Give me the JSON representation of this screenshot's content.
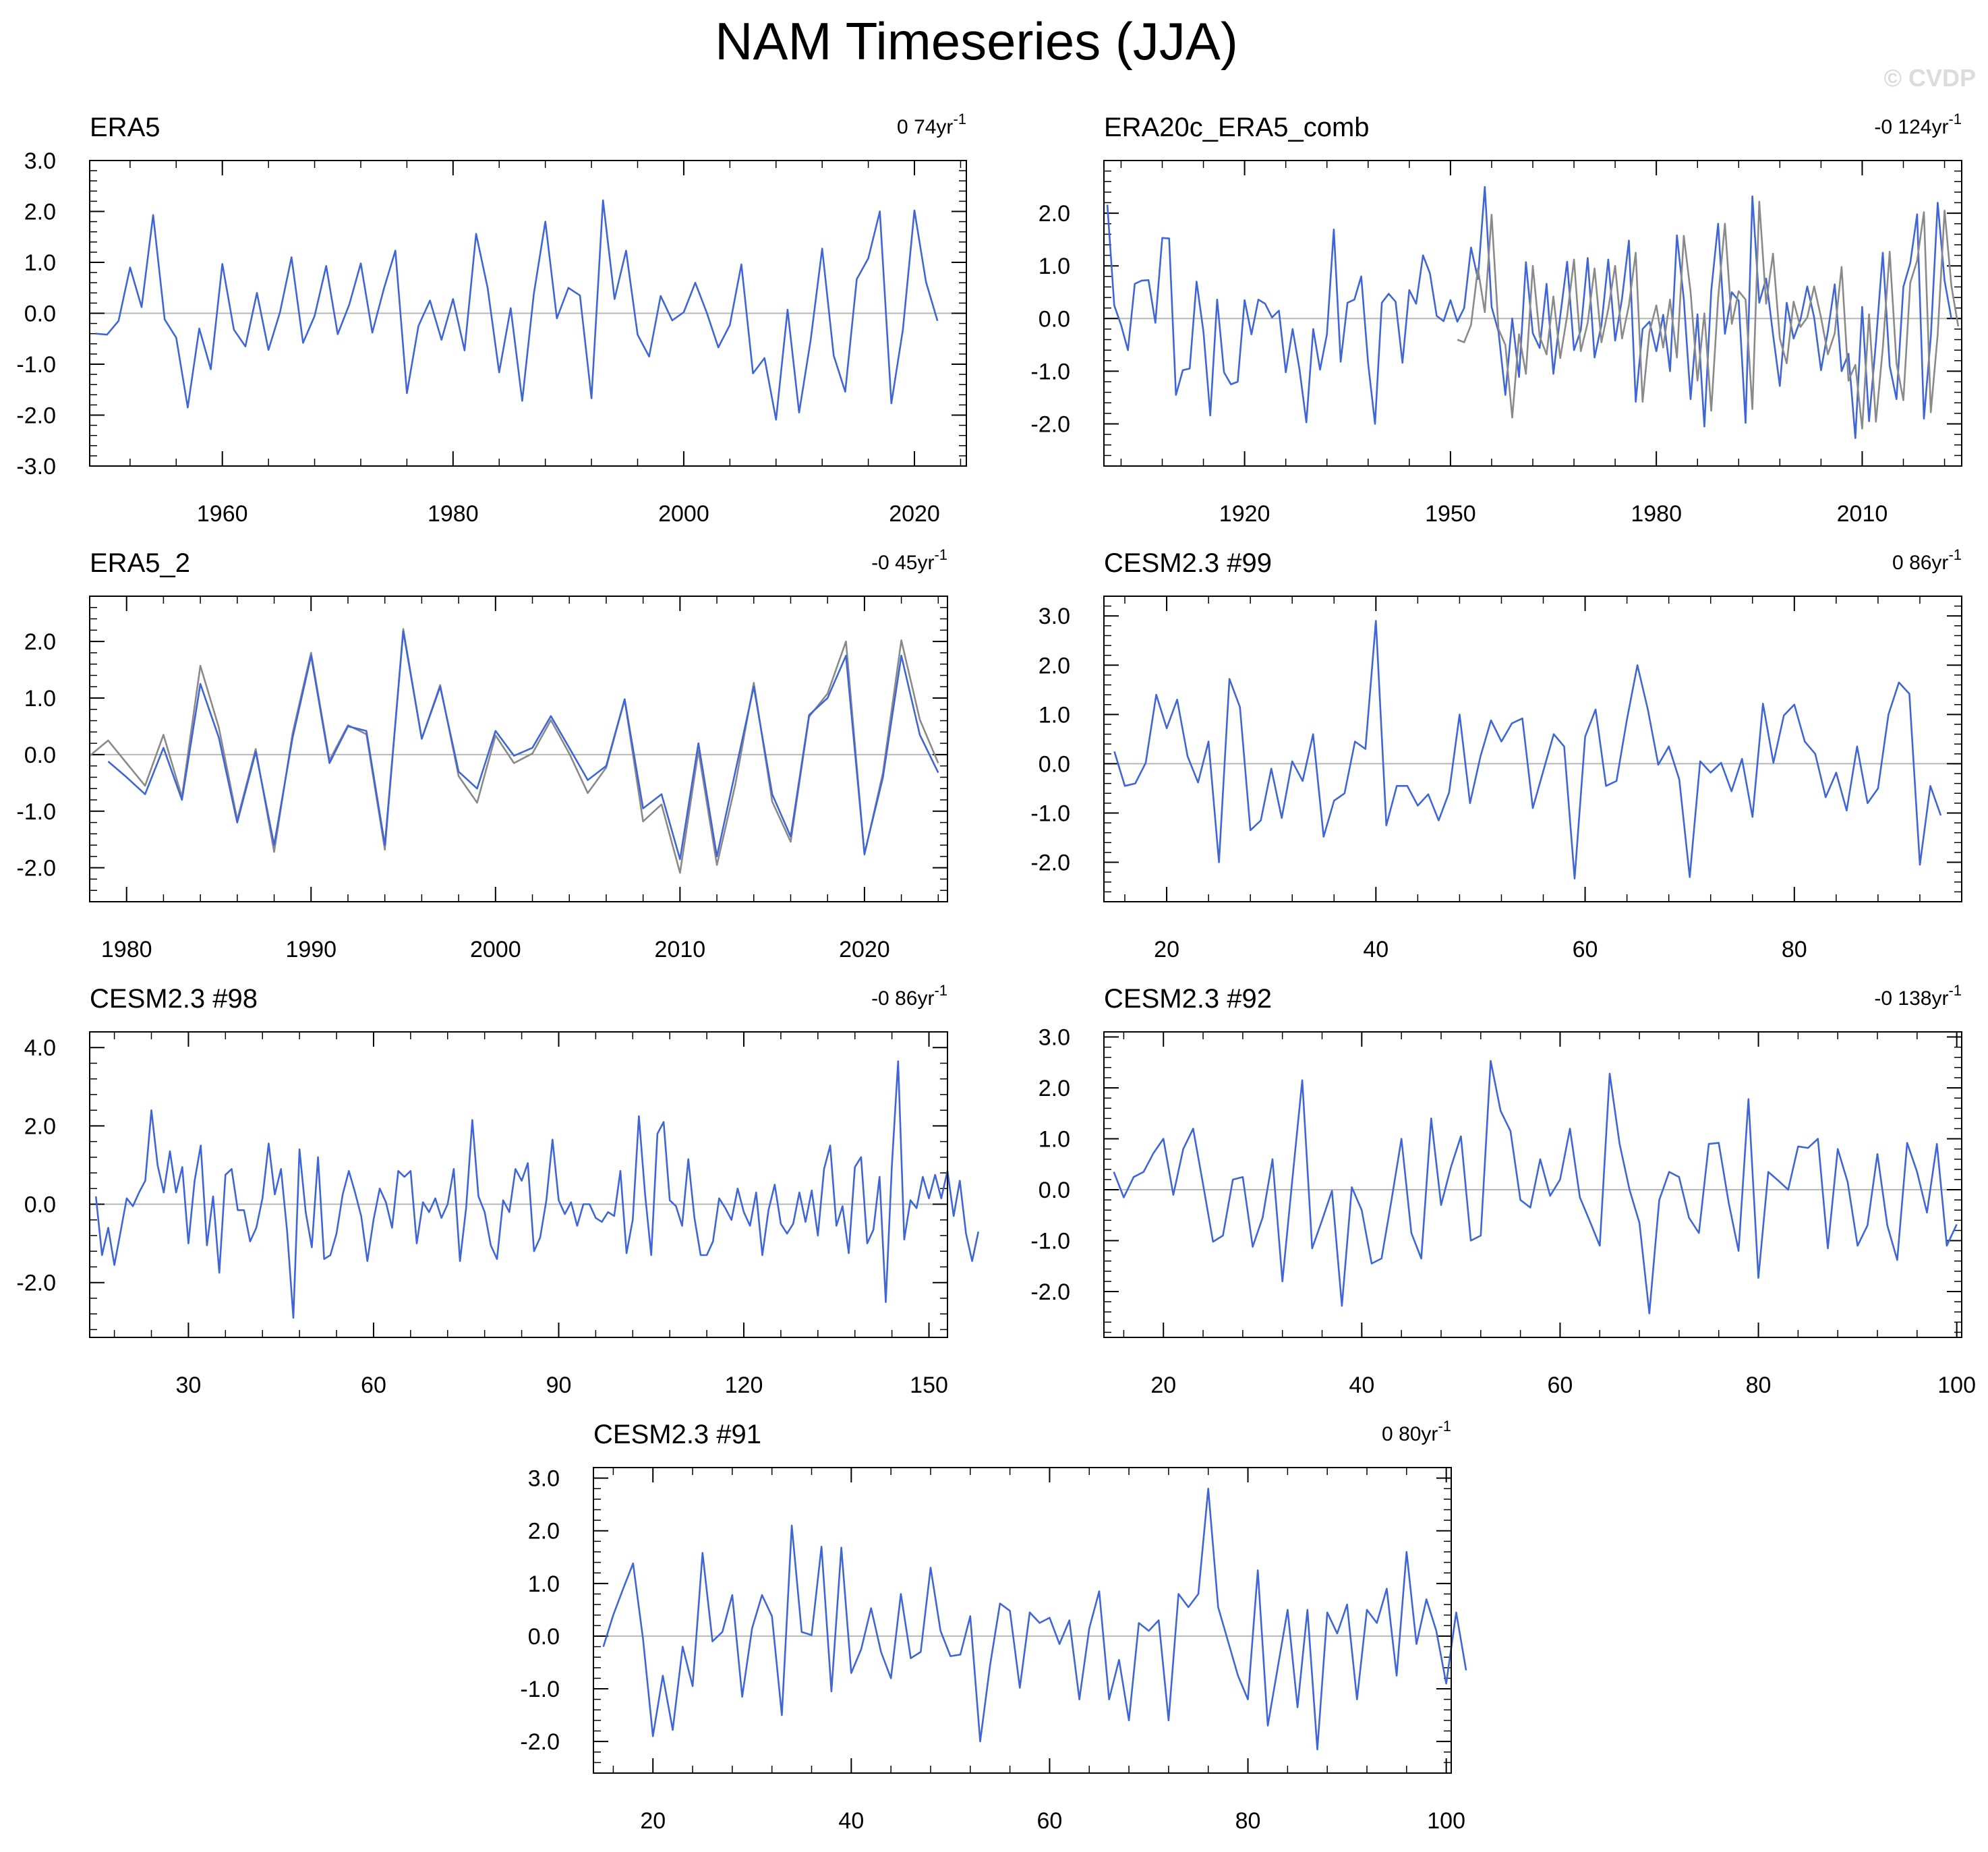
{
  "title": "NAM Timeseries (JJA)",
  "watermark": "© CVDP",
  "colors": {
    "primary": "#3f66d8",
    "secondary": "#8a8a8a",
    "zero_line": "#b8b8b8",
    "axis": "#000000",
    "watermark": "#dcdcdc"
  },
  "chart_data": [
    {
      "type": "line",
      "title": "ERA5",
      "trend": "0 74yr",
      "trend_sup": "-1",
      "xlim": [
        1948.5,
        2024.5
      ],
      "ylim": [
        -3,
        3
      ],
      "yticks": [
        -3,
        -2,
        -1,
        0,
        1,
        2,
        3
      ],
      "ytick_labels": [
        "-3.0",
        "-2.0",
        "-1.0",
        "0.0",
        "1.0",
        "2.0",
        "3.0"
      ],
      "xticks": [
        1960,
        1980,
        2000,
        2020
      ],
      "x_start": 1949,
      "series": [
        {
          "values": [
            -0.4,
            -0.42,
            -0.15,
            0.9,
            0.12,
            1.93,
            -0.12,
            -0.48,
            -1.85,
            -0.3,
            -1.1,
            0.97,
            -0.32,
            -0.65,
            0.4,
            -0.72,
            0.02,
            1.1,
            -0.58,
            -0.05,
            0.93,
            -0.41,
            0.17,
            0.98,
            -0.38,
            0.48,
            1.23,
            -1.57,
            -0.25,
            0.25,
            -0.52,
            0.28,
            -0.73,
            1.56,
            0.5,
            -1.16,
            0.1,
            -1.72,
            0.38,
            1.8,
            -0.1,
            0.5,
            0.35,
            -1.67,
            2.22,
            0.28,
            1.23,
            -0.42,
            -0.85,
            0.34,
            -0.14,
            0.02,
            0.6,
            0.01,
            -0.67,
            -0.23,
            0.96,
            -1.18,
            -0.88,
            -2.09,
            0.07,
            -1.95,
            -0.53,
            1.27,
            -0.83,
            -1.54,
            0.67,
            1.08,
            2.0,
            -1.77,
            -0.32,
            2.02,
            0.62,
            -0.15
          ]
        }
      ]
    },
    {
      "type": "line",
      "title": "ERA20c_ERA5_comb",
      "trend": "-0 124yr",
      "trend_sup": "-1",
      "xlim": [
        1899.5,
        2024.5
      ],
      "ylim": [
        -2.8,
        3.0
      ],
      "yticks": [
        -2,
        -1,
        0,
        1,
        2
      ],
      "ytick_labels": [
        "-2.0",
        "-1.0",
        "0.0",
        "1.0",
        "2.0"
      ],
      "xticks": [
        1920,
        1950,
        1980,
        2010
      ],
      "x_start": 1900,
      "series": [
        {
          "values": [
            2.16,
            0.25,
            -0.12,
            -0.6,
            0.66,
            0.72,
            0.73,
            -0.08,
            1.53,
            1.52,
            -1.45,
            -0.98,
            -0.95,
            0.7,
            -0.25,
            -1.84,
            0.36,
            -1.02,
            -1.25,
            -1.2,
            0.35,
            -0.3,
            0.36,
            0.28,
            0.02,
            0.15,
            -1.02,
            -0.2,
            -0.96,
            -1.97,
            -0.2,
            -0.97,
            -0.3,
            1.69,
            -0.82,
            0.3,
            0.36,
            0.8,
            -0.85,
            -2.0,
            0.3,
            0.47,
            0.32,
            -0.84,
            0.54,
            0.28,
            1.2,
            0.86,
            0.05,
            -0.05,
            0.35,
            -0.06,
            0.2,
            1.35,
            0.75,
            2.5,
            0.22,
            -0.25,
            -1.45,
            0.0,
            -1.11,
            1.07,
            -0.28,
            -0.56,
            0.66,
            -1.05,
            0.05,
            1.08,
            -0.6,
            -0.22,
            1.15,
            -0.74,
            -0.12,
            1.12,
            -0.42,
            0.38,
            1.48,
            -1.58,
            -0.2,
            -0.06,
            -0.62,
            0.07,
            -1.0,
            1.58,
            0.37,
            -1.53,
            0.08,
            -2.05,
            0.53,
            1.8,
            -0.29,
            0.5,
            0.34,
            -1.98,
            2.32,
            0.3,
            0.76,
            -0.3,
            -1.28,
            0.3,
            -0.38,
            -0.02,
            0.61,
            0.02,
            -0.98,
            -0.24,
            0.65,
            -1.0,
            -0.67,
            -2.27,
            0.22,
            -1.95,
            -0.45,
            1.25,
            -0.9,
            -1.53,
            0.6,
            1.05,
            1.98,
            -1.9,
            -0.35,
            2.2,
            0.72,
            0.0
          ]
        },
        {
          "values": [
            null,
            null,
            null,
            null,
            null,
            null,
            null,
            null,
            null,
            null,
            null,
            null,
            null,
            null,
            null,
            null,
            null,
            null,
            null,
            null,
            null,
            null,
            null,
            null,
            null,
            null,
            null,
            null,
            null,
            null,
            null,
            null,
            null,
            null,
            null,
            null,
            null,
            null,
            null,
            null,
            null,
            null,
            null,
            null,
            null,
            null,
            null,
            null,
            null,
            null,
            null,
            -0.4,
            -0.45,
            -0.12,
            0.95,
            0.12,
            1.97,
            -0.2,
            -0.5,
            -1.88,
            -0.3,
            -1.05,
            1.0,
            -0.34,
            -0.68,
            0.42,
            -0.75,
            0.05,
            1.12,
            -0.62,
            -0.08,
            0.95,
            -0.45,
            0.18,
            1.0,
            -0.38,
            0.25,
            1.25,
            -1.58,
            -0.25,
            0.25,
            -0.55,
            0.36,
            -0.74,
            1.57,
            0.5,
            -1.18,
            0.1,
            -1.75,
            0.38,
            1.8,
            -0.1,
            0.52,
            0.36,
            -1.72,
            2.22,
            0.28,
            1.23,
            -0.38,
            -0.85,
            0.32,
            -0.16,
            0.02,
            0.61,
            0.02,
            -0.68,
            -0.28,
            0.98,
            -1.18,
            -0.88,
            -2.09,
            0.08,
            -1.96,
            -0.56,
            1.27,
            -0.85,
            -1.55,
            0.68,
            1.1,
            2.02,
            -1.78,
            -0.3,
            2.05,
            0.62,
            -0.15
          ]
        }
      ]
    },
    {
      "type": "line",
      "title": "ERA5_2",
      "trend": "-0 45yr",
      "trend_sup": "-1",
      "xlim": [
        1978,
        2024.5
      ],
      "ylim": [
        -2.6,
        2.8
      ],
      "yticks": [
        -2,
        -1,
        0,
        1,
        2
      ],
      "ytick_labels": [
        "-2.0",
        "-1.0",
        "0.0",
        "1.0",
        "2.0"
      ],
      "xticks": [
        1980,
        1990,
        2000,
        2010,
        2020
      ],
      "x_start": 1978,
      "series": [
        {
          "values": [
            -0.02,
            0.25,
            -0.15,
            -0.55,
            0.35,
            -0.75,
            1.57,
            0.48,
            -1.15,
            0.1,
            -1.72,
            0.38,
            1.8,
            -0.1,
            0.52,
            0.36,
            -1.68,
            2.22,
            0.28,
            1.23,
            -0.38,
            -0.85,
            0.34,
            -0.15,
            0.02,
            0.61,
            0.02,
            -0.68,
            -0.23,
            0.97,
            -1.18,
            -0.88,
            -2.09,
            0.07,
            -1.95,
            -0.53,
            1.27,
            -0.83,
            -1.54,
            0.67,
            1.08,
            2.0,
            -1.77,
            -0.32,
            2.02,
            0.62,
            -0.15
          ],
          "color": "secondary"
        },
        {
          "values": [
            null,
            -0.12,
            -0.4,
            -0.7,
            0.12,
            -0.8,
            1.25,
            0.3,
            -1.2,
            0.05,
            -1.6,
            0.3,
            1.75,
            -0.15,
            0.5,
            0.42,
            -1.6,
            2.18,
            0.28,
            1.2,
            -0.3,
            -0.6,
            0.42,
            -0.02,
            0.12,
            0.68,
            0.12,
            -0.45,
            -0.2,
            0.98,
            -0.95,
            -0.7,
            -1.85,
            0.2,
            -1.8,
            -0.3,
            1.2,
            -0.7,
            -1.45,
            0.7,
            1.0,
            1.75,
            -1.75,
            -0.4,
            1.75,
            0.35,
            -0.32
          ],
          "color": "primary"
        }
      ]
    },
    {
      "type": "line",
      "title": "CESM2.3 #99",
      "trend": "0 86yr",
      "trend_sup": "-1",
      "xlim": [
        14,
        96
      ],
      "ylim": [
        -2.8,
        3.4
      ],
      "yticks": [
        -2,
        -1,
        0,
        1,
        2,
        3
      ],
      "ytick_labels": [
        "-2.0",
        "-1.0",
        "0.0",
        "1.0",
        "2.0",
        "3.0"
      ],
      "xticks": [
        20,
        40,
        60,
        80
      ],
      "x_start": 15,
      "series": [
        {
          "values": [
            0.25,
            -0.45,
            -0.4,
            0.02,
            1.4,
            0.72,
            1.3,
            0.15,
            -0.38,
            0.45,
            -2.0,
            1.72,
            1.15,
            -1.35,
            -1.15,
            -0.1,
            -1.1,
            0.05,
            -0.35,
            0.6,
            -1.48,
            -0.75,
            -0.6,
            0.45,
            0.3,
            2.9,
            -1.25,
            -0.45,
            -0.45,
            -0.85,
            -0.62,
            -1.15,
            -0.58,
            1.0,
            -0.8,
            0.15,
            0.88,
            0.45,
            0.82,
            0.92,
            -0.9,
            -0.15,
            0.6,
            0.35,
            -2.33,
            0.55,
            1.1,
            -0.45,
            -0.35,
            0.9,
            2.0,
            1.1,
            -0.02,
            0.35,
            -0.32,
            -2.3,
            0.05,
            -0.18,
            0.02,
            -0.56,
            0.1,
            -1.08,
            1.22,
            0.02,
            0.98,
            1.2,
            0.45,
            0.2,
            -0.68,
            -0.18,
            -0.95,
            0.35,
            -0.8,
            -0.5,
            1.0,
            1.65,
            1.42,
            -2.05,
            -0.45,
            -1.05
          ]
        }
      ]
    },
    {
      "type": "line",
      "title": "CESM2.3 #98",
      "trend": "-0 86yr",
      "trend_sup": "-1",
      "xlim": [
        14,
        153
      ],
      "ylim": [
        -3.4,
        4.4
      ],
      "yticks": [
        -2,
        0,
        2,
        4
      ],
      "ytick_labels": [
        "-2.0",
        "0.0",
        "2.0",
        "4.0"
      ],
      "xticks": [
        30,
        60,
        90,
        120,
        150
      ],
      "x_start": 15,
      "series": [
        {
          "values": [
            0.2,
            -1.3,
            -0.6,
            -1.55,
            -0.7,
            0.15,
            -0.05,
            0.3,
            0.6,
            2.4,
            1.0,
            0.3,
            1.35,
            0.3,
            0.95,
            -1.0,
            0.6,
            1.5,
            -1.05,
            0.2,
            -1.75,
            0.75,
            0.9,
            -0.15,
            -0.15,
            -0.95,
            -0.6,
            0.15,
            1.55,
            0.25,
            0.9,
            -0.7,
            -2.9,
            1.4,
            -0.2,
            -1.1,
            1.2,
            -1.4,
            -1.3,
            -0.75,
            0.25,
            0.85,
            0.3,
            -0.3,
            -1.45,
            -0.4,
            0.4,
            0.05,
            -0.6,
            0.85,
            0.7,
            0.85,
            -1.0,
            0.05,
            -0.2,
            0.15,
            -0.35,
            0.0,
            0.9,
            -1.45,
            -0.1,
            2.15,
            0.2,
            -0.2,
            -1.05,
            -1.4,
            0.1,
            -0.2,
            0.9,
            0.6,
            1.05,
            -1.2,
            -0.85,
            0.1,
            1.65,
            0.1,
            -0.25,
            0.05,
            -0.55,
            0.0,
            0.0,
            -0.35,
            -0.45,
            -0.2,
            -0.3,
            0.85,
            -1.25,
            -0.4,
            2.25,
            0.25,
            -1.3,
            1.8,
            2.1,
            0.1,
            -0.05,
            -0.55,
            1.15,
            -0.35,
            -1.3,
            -1.3,
            -0.95,
            0.15,
            -0.1,
            -0.4,
            0.4,
            -0.2,
            -0.55,
            0.3,
            -1.3,
            -0.15,
            0.5,
            -0.5,
            -0.75,
            -0.5,
            0.3,
            -0.45,
            0.35,
            -0.8,
            0.9,
            1.5,
            -0.55,
            -0.05,
            -1.25,
            0.95,
            1.2,
            -1.0,
            -0.65,
            0.7,
            -2.5,
            1.0,
            3.65,
            -0.9,
            0.1,
            -0.1,
            0.7,
            0.15,
            0.75,
            0.15,
            0.85,
            -0.3,
            0.6,
            -0.75,
            -1.45,
            -0.7
          ]
        }
      ]
    },
    {
      "type": "line",
      "title": "CESM2.3 #92",
      "trend": "-0 138yr",
      "trend_sup": "-1",
      "xlim": [
        14,
        100.5
      ],
      "ylim": [
        -2.9,
        3.1
      ],
      "yticks": [
        -2,
        -1,
        0,
        1,
        2,
        3
      ],
      "ytick_labels": [
        "-2.0",
        "-1.0",
        "0.0",
        "1.0",
        "2.0",
        "3.0"
      ],
      "xticks": [
        20,
        40,
        60,
        80,
        100
      ],
      "x_start": 15,
      "series": [
        {
          "values": [
            0.35,
            -0.15,
            0.25,
            0.35,
            0.72,
            1.0,
            -0.1,
            0.8,
            1.2,
            0.1,
            -1.02,
            -0.9,
            0.2,
            0.25,
            -1.12,
            -0.55,
            0.6,
            -1.8,
            0.2,
            2.15,
            -1.15,
            -0.6,
            -0.02,
            -2.28,
            0.05,
            -0.4,
            -1.45,
            -1.35,
            -0.2,
            1.0,
            -0.85,
            -1.35,
            1.4,
            -0.3,
            0.45,
            1.05,
            -1.0,
            -0.9,
            2.53,
            1.55,
            1.15,
            -0.2,
            -0.35,
            0.6,
            -0.12,
            0.2,
            1.2,
            -0.15,
            -0.62,
            -1.1,
            2.28,
            0.9,
            0.0,
            -0.65,
            -2.43,
            -0.2,
            0.35,
            0.25,
            -0.55,
            -0.85,
            0.9,
            0.92,
            -0.25,
            -1.2,
            1.78,
            -1.73,
            0.35,
            0.18,
            0.0,
            0.85,
            0.82,
            1.0,
            -1.15,
            0.8,
            0.15,
            -1.1,
            -0.7,
            0.7,
            -0.7,
            -1.38,
            0.92,
            0.35,
            -0.45,
            0.9,
            -1.1,
            -0.68
          ]
        }
      ]
    },
    {
      "type": "line",
      "title": "CESM2.3 #91",
      "trend": "0 80yr",
      "trend_sup": "-1",
      "xlim": [
        14,
        100.5
      ],
      "ylim": [
        -2.6,
        3.2
      ],
      "yticks": [
        -2,
        -1,
        0,
        1,
        2,
        3
      ],
      "ytick_labels": [
        "-2.0",
        "-1.0",
        "0.0",
        "1.0",
        "2.0",
        "3.0"
      ],
      "xticks": [
        20,
        40,
        60,
        80,
        100
      ],
      "x_start": 15,
      "series": [
        {
          "values": [
            -0.2,
            0.4,
            0.9,
            1.38,
            -0.05,
            -1.9,
            -0.75,
            -1.78,
            -0.2,
            -0.95,
            1.58,
            -0.1,
            0.08,
            0.78,
            -1.15,
            0.15,
            0.78,
            0.38,
            -1.5,
            2.1,
            0.08,
            0.02,
            1.7,
            -1.05,
            1.68,
            -0.7,
            -0.25,
            0.53,
            -0.3,
            -0.8,
            0.8,
            -0.42,
            -0.3,
            1.3,
            0.1,
            -0.38,
            -0.35,
            0.38,
            -2.0,
            -0.55,
            0.62,
            0.48,
            -0.98,
            0.45,
            0.25,
            0.35,
            -0.15,
            0.3,
            -1.2,
            0.15,
            0.85,
            -1.2,
            -0.45,
            -1.6,
            0.25,
            0.1,
            0.3,
            -1.6,
            0.8,
            0.55,
            0.8,
            2.8,
            0.55,
            -0.1,
            -0.75,
            -1.2,
            1.25,
            -1.7,
            -0.6,
            0.5,
            -1.35,
            0.5,
            -2.15,
            0.45,
            0.05,
            0.6,
            -1.2,
            0.5,
            0.25,
            0.9,
            -0.75,
            1.6,
            -0.15,
            0.7,
            0.1,
            -0.9,
            0.45,
            -0.65
          ]
        }
      ]
    }
  ]
}
